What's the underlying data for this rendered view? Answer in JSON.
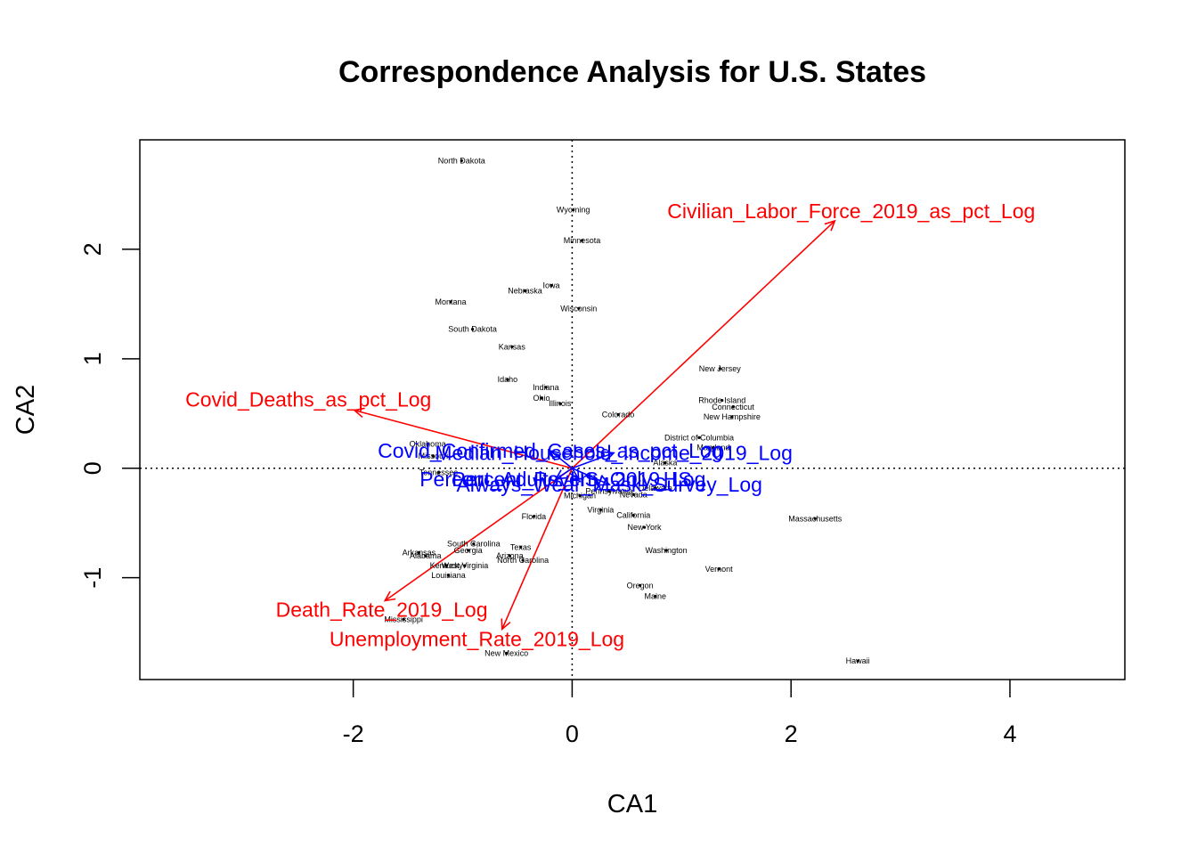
{
  "chart_data": {
    "type": "scatter",
    "title": "Correspondence Analysis for U.S. States",
    "xlabel": "CA1",
    "ylabel": "CA2",
    "xlim": [
      -3.95,
      5.05
    ],
    "ylim": [
      -1.93,
      3.0
    ],
    "x_ticks": [
      -2,
      0,
      2,
      4
    ],
    "y_ticks": [
      -1,
      0,
      1,
      2
    ],
    "grid": false,
    "reference_lines": {
      "x": 0,
      "y": 0,
      "style": "dotted"
    },
    "states": [
      {
        "name": "North Dakota",
        "x": -1.01,
        "y": 2.81
      },
      {
        "name": "Wyoming",
        "x": 0.01,
        "y": 2.36
      },
      {
        "name": "Minnesota",
        "x": 0.09,
        "y": 2.08
      },
      {
        "name": "Iowa",
        "x": -0.19,
        "y": 1.67
      },
      {
        "name": "Nebraska",
        "x": -0.43,
        "y": 1.62
      },
      {
        "name": "Montana",
        "x": -1.11,
        "y": 1.52
      },
      {
        "name": "Wisconsin",
        "x": 0.06,
        "y": 1.46
      },
      {
        "name": "South Dakota",
        "x": -0.91,
        "y": 1.27
      },
      {
        "name": "Kansas",
        "x": -0.55,
        "y": 1.11
      },
      {
        "name": "New Jersey",
        "x": 1.35,
        "y": 0.91
      },
      {
        "name": "Idaho",
        "x": -0.59,
        "y": 0.81
      },
      {
        "name": "Indiana",
        "x": -0.24,
        "y": 0.74
      },
      {
        "name": "Ohio",
        "x": -0.28,
        "y": 0.64
      },
      {
        "name": "Rhode Island",
        "x": 1.37,
        "y": 0.62
      },
      {
        "name": "Illinois",
        "x": -0.11,
        "y": 0.59
      },
      {
        "name": "Connecticut",
        "x": 1.47,
        "y": 0.56
      },
      {
        "name": "Colorado",
        "x": 0.42,
        "y": 0.49
      },
      {
        "name": "New Hampshire",
        "x": 1.46,
        "y": 0.47
      },
      {
        "name": "District of Columbia",
        "x": 1.16,
        "y": 0.28
      },
      {
        "name": "Oklahoma",
        "x": -1.32,
        "y": 0.22
      },
      {
        "name": "Maryland",
        "x": 1.29,
        "y": 0.19
      },
      {
        "name": "Missouri",
        "x": -1.27,
        "y": 0.11
      },
      {
        "name": "Alaska",
        "x": 0.85,
        "y": 0.05
      },
      {
        "name": "Tennessee",
        "x": -1.22,
        "y": -0.04
      },
      {
        "name": "Pennsylvania",
        "x": 0.34,
        "y": -0.21
      },
      {
        "name": "Delaware",
        "x": 0.76,
        "y": -0.18
      },
      {
        "name": "Nevada",
        "x": 0.56,
        "y": -0.24
      },
      {
        "name": "Michigan",
        "x": 0.07,
        "y": -0.25
      },
      {
        "name": "Virginia",
        "x": 0.26,
        "y": -0.38
      },
      {
        "name": "Florida",
        "x": -0.35,
        "y": -0.44
      },
      {
        "name": "California",
        "x": 0.56,
        "y": -0.43
      },
      {
        "name": "Massachusetts",
        "x": 2.22,
        "y": -0.46
      },
      {
        "name": "New York",
        "x": 0.66,
        "y": -0.54
      },
      {
        "name": "South Carolina",
        "x": -0.9,
        "y": -0.69
      },
      {
        "name": "Texas",
        "x": -0.47,
        "y": -0.72
      },
      {
        "name": "Georgia",
        "x": -0.95,
        "y": -0.75
      },
      {
        "name": "Washington",
        "x": 0.86,
        "y": -0.75
      },
      {
        "name": "Arkansas",
        "x": -1.4,
        "y": -0.77
      },
      {
        "name": "Arizona",
        "x": -0.57,
        "y": -0.8
      },
      {
        "name": "Alabama",
        "x": -1.34,
        "y": -0.8
      },
      {
        "name": "North Carolina",
        "x": -0.45,
        "y": -0.84
      },
      {
        "name": "Kentucky",
        "x": -1.15,
        "y": -0.89
      },
      {
        "name": "West Virginia",
        "x": -0.98,
        "y": -0.89
      },
      {
        "name": "Vernont",
        "x": 1.34,
        "y": -0.92
      },
      {
        "name": "Louisiana",
        "x": -1.13,
        "y": -0.98
      },
      {
        "name": "Oregon",
        "x": 0.62,
        "y": -1.07
      },
      {
        "name": "Maine",
        "x": 0.76,
        "y": -1.17
      },
      {
        "name": "Mississippi",
        "x": -1.54,
        "y": -1.38
      },
      {
        "name": "New Mexico",
        "x": -0.6,
        "y": -1.69
      },
      {
        "name": "Hawaii",
        "x": 2.61,
        "y": -1.76
      }
    ],
    "variables": [
      {
        "name": "Civilian_Labor_Force_2019_as_pct_Log",
        "x": 2.4,
        "y": 2.26,
        "color": "#ff0000",
        "label_x": 2.55,
        "label_y": 2.35
      },
      {
        "name": "Covid_Deaths_as_pct_Log",
        "x": -1.99,
        "y": 0.53,
        "color": "#ff0000",
        "label_x": -2.41,
        "label_y": 0.63
      },
      {
        "name": "Death_Rate_2019_Log",
        "x": -1.71,
        "y": -1.21,
        "color": "#ff0000",
        "label_x": -1.74,
        "label_y": -1.29
      },
      {
        "name": "Unemployment_Rate_2019_Log",
        "x": -0.64,
        "y": -1.47,
        "color": "#ff0000",
        "label_x": -0.87,
        "label_y": -1.56
      },
      {
        "name": "Covid_Confirmed_Cases_as_pct_Log",
        "x": -0.2,
        "y": 0.16,
        "color": "#0000ff",
        "label_x": -0.2,
        "label_y": 0.16
      },
      {
        "name": "Median_Household_Income_2019_Log",
        "x": 0.38,
        "y": 0.14,
        "color": "#0000ff",
        "label_x": 0.38,
        "label_y": 0.14
      },
      {
        "name": "Percent_Adults_HS_Only_HS",
        "x": -0.15,
        "y": -0.1,
        "color": "#0000ff",
        "label_x": -0.15,
        "label_y": -0.1
      },
      {
        "name": "Percent_Poverty_2019_Log",
        "x": 0.06,
        "y": -0.1,
        "color": "#0000ff",
        "label_x": 0.06,
        "label_y": -0.1
      },
      {
        "name": "Always_Wear_Mask_Survey_Log",
        "x": 0.34,
        "y": -0.15,
        "color": "#0000ff",
        "label_x": 0.34,
        "label_y": -0.15
      }
    ]
  }
}
